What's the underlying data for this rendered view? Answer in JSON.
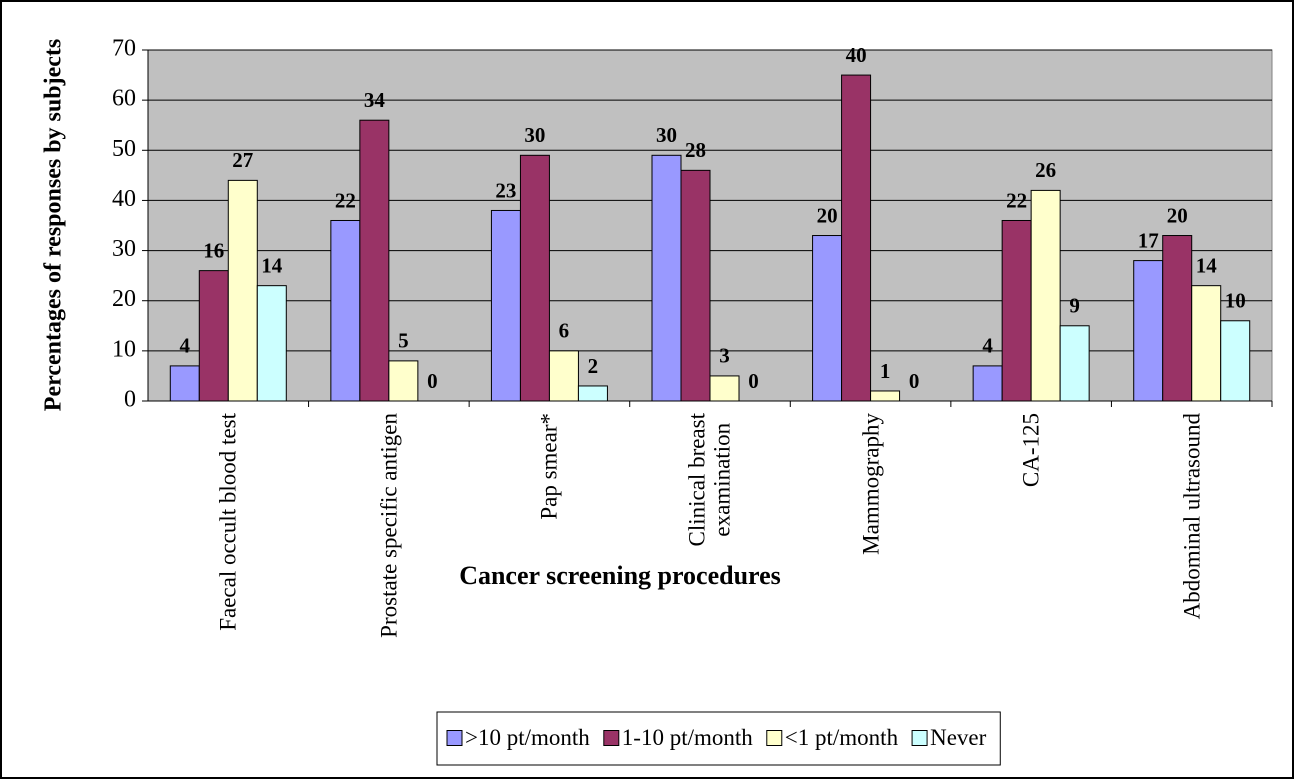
{
  "chart_data": {
    "type": "bar",
    "categories": [
      "Faecal occult blood test",
      "Prostate specific antigen",
      "Pap smear*",
      "Clinical breast\nexamination",
      "Mammography",
      "CA-125",
      "Abdominal ultrasound"
    ],
    "series": [
      {
        "name": ">10 pt/month",
        "color": "#9999ff",
        "values": [
          7,
          36,
          38,
          49,
          33,
          7,
          28
        ],
        "counts": [
          4,
          22,
          23,
          30,
          20,
          4,
          17
        ]
      },
      {
        "name": "1-10 pt/month",
        "color": "#993366",
        "values": [
          26,
          56,
          49,
          46,
          65,
          36,
          33
        ],
        "counts": [
          16,
          34,
          30,
          28,
          40,
          22,
          20
        ]
      },
      {
        "name": "<1 pt/month",
        "color": "#ffffcc",
        "values": [
          44,
          8,
          10,
          5,
          2,
          42,
          23
        ],
        "counts": [
          27,
          5,
          6,
          3,
          1,
          26,
          14
        ]
      },
      {
        "name": "Never",
        "color": "#ccffff",
        "values": [
          23,
          0,
          3,
          0,
          0,
          15,
          16
        ],
        "counts": [
          14,
          0,
          2,
          0,
          0,
          9,
          10
        ]
      }
    ],
    "x_label": "Cancer screening procedures",
    "y_label": "Percentages of responses by subjects",
    "ylim": [
      0,
      70
    ],
    "yticks": [
      0,
      10,
      20,
      30,
      40,
      50,
      60,
      70
    ],
    "grid": true,
    "plot_background": "#c0c0c0",
    "legend": "bottom"
  }
}
